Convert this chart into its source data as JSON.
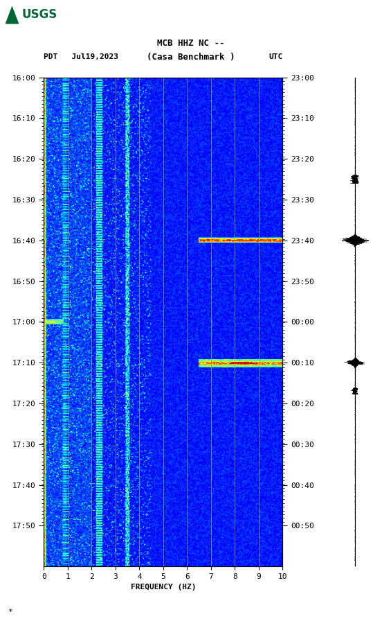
{
  "title_line1": "MCB HHZ NC --",
  "title_line2": "(Casa Benchmark )",
  "label_left_top": "PDT",
  "label_date": "Jul19,2023",
  "label_right_top": "UTC",
  "y_labels_left": [
    "16:00",
    "16:10",
    "16:20",
    "16:30",
    "16:40",
    "16:50",
    "17:00",
    "17:10",
    "17:20",
    "17:30",
    "17:40",
    "17:50"
  ],
  "y_labels_right": [
    "23:00",
    "23:10",
    "23:20",
    "23:30",
    "23:40",
    "23:50",
    "00:00",
    "00:10",
    "00:20",
    "00:30",
    "00:40",
    "00:50"
  ],
  "xlabel": "FREQUENCY (HZ)",
  "xmin": 0,
  "xmax": 10,
  "xticks": [
    0,
    1,
    2,
    3,
    4,
    5,
    6,
    7,
    8,
    9,
    10
  ],
  "bg_color": "#ffffff",
  "usgs_green": "#006633",
  "vertical_lines_x": [
    1.0,
    2.0,
    3.0,
    4.0,
    5.0,
    6.0,
    7.0,
    8.0,
    9.0
  ],
  "vertical_line_color": "#999966",
  "n_time": 600,
  "n_freq": 300,
  "seed": 42
}
